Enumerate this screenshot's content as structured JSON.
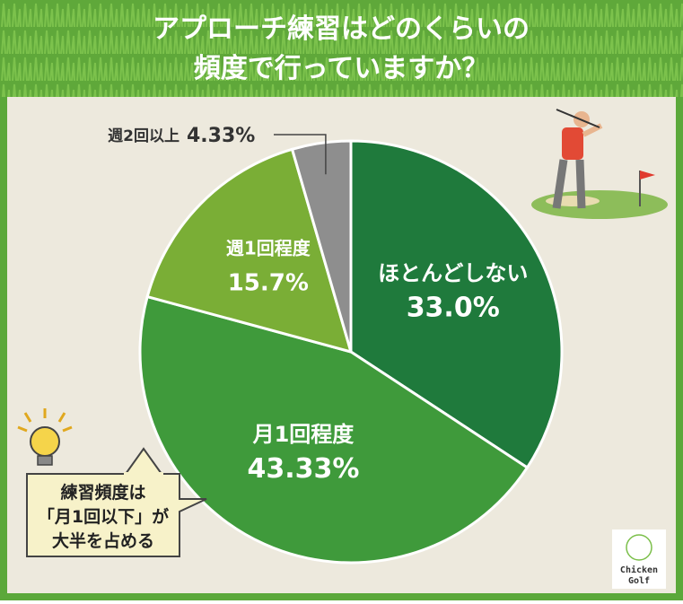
{
  "chart_data": {
    "type": "pie",
    "title": [
      "アプローチ練習はどのくらいの",
      "頻度で行っていますか？"
    ],
    "categories": [
      "ほとんどしない",
      "月1回程度",
      "週1回程度",
      "週2回以上"
    ],
    "values": [
      33.0,
      43.33,
      15.7,
      4.33
    ],
    "value_labels": [
      "33.0%",
      "43.33%",
      "15.7%",
      "4.33%"
    ],
    "colors": [
      "#1f7a3c",
      "#3f9a3b",
      "#7aae36",
      "#8e8e8e"
    ],
    "annotation": [
      "練習頻度は",
      "「月1回以下」が",
      "大半を占める"
    ],
    "logo": [
      "Chicken",
      "Golf"
    ]
  }
}
